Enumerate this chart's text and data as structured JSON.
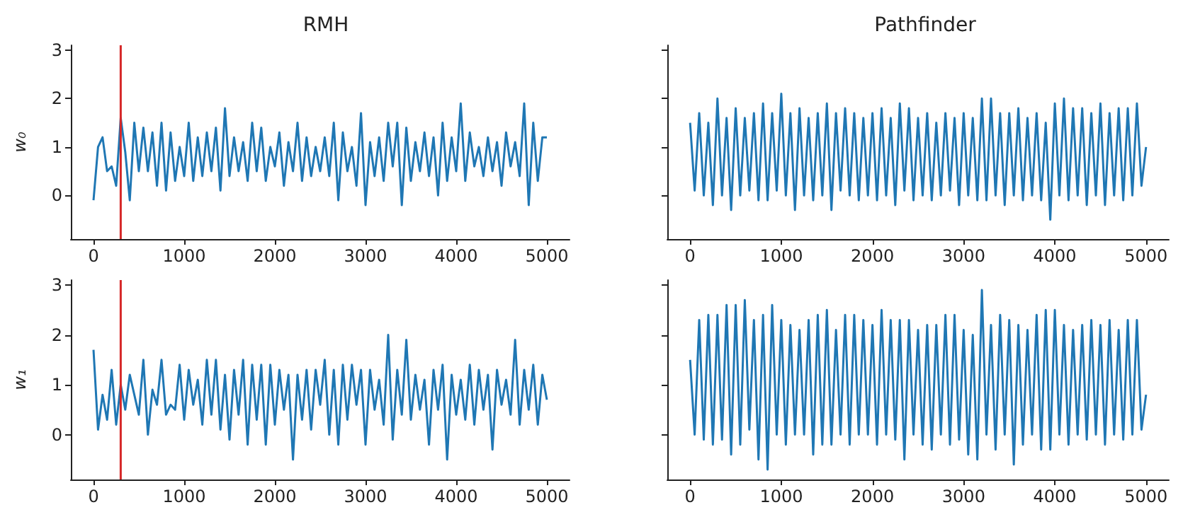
{
  "chart_data": [
    {
      "type": "line",
      "title": "RMH",
      "ylabel": "w₀",
      "xlim": [
        -250,
        5250
      ],
      "xticks": [
        0,
        1000,
        2000,
        3000,
        4000,
        5000
      ],
      "ylim": [
        -0.9,
        3.1
      ],
      "yticks": [
        0,
        1,
        2,
        3
      ],
      "ref_lines": [
        {
          "axis": "x",
          "value": 300,
          "color": "#d62728"
        }
      ],
      "x": [
        0,
        50,
        100,
        150,
        200,
        250,
        300,
        350,
        400,
        450,
        500,
        550,
        600,
        650,
        700,
        750,
        800,
        850,
        900,
        950,
        1000,
        1050,
        1100,
        1150,
        1200,
        1250,
        1300,
        1350,
        1400,
        1450,
        1500,
        1550,
        1600,
        1650,
        1700,
        1750,
        1800,
        1850,
        1900,
        1950,
        2000,
        2050,
        2100,
        2150,
        2200,
        2250,
        2300,
        2350,
        2400,
        2450,
        2500,
        2550,
        2600,
        2650,
        2700,
        2750,
        2800,
        2850,
        2900,
        2950,
        3000,
        3050,
        3100,
        3150,
        3200,
        3250,
        3300,
        3350,
        3400,
        3450,
        3500,
        3550,
        3600,
        3650,
        3700,
        3750,
        3800,
        3850,
        3900,
        3950,
        4000,
        4050,
        4100,
        4150,
        4200,
        4250,
        4300,
        4350,
        4400,
        4450,
        4500,
        4550,
        4600,
        4650,
        4700,
        4750,
        4800,
        4850,
        4900,
        4950,
        5000
      ],
      "series": [
        {
          "color": "#1f77b4",
          "values": [
            -0.1,
            1.0,
            1.2,
            0.5,
            0.6,
            0.2,
            1.6,
            0.9,
            -0.1,
            1.5,
            0.5,
            1.4,
            0.5,
            1.3,
            0.2,
            1.5,
            0.1,
            1.3,
            0.3,
            1.0,
            0.4,
            1.5,
            0.3,
            1.2,
            0.4,
            1.3,
            0.5,
            1.4,
            0.1,
            1.8,
            0.4,
            1.2,
            0.5,
            1.1,
            0.3,
            1.5,
            0.5,
            1.4,
            0.3,
            1.0,
            0.6,
            1.3,
            0.2,
            1.1,
            0.5,
            1.5,
            0.3,
            1.2,
            0.4,
            1.0,
            0.5,
            1.2,
            0.4,
            1.5,
            -0.1,
            1.3,
            0.5,
            1.0,
            0.2,
            1.7,
            -0.2,
            1.1,
            0.4,
            1.2,
            0.3,
            1.5,
            0.6,
            1.5,
            -0.2,
            1.4,
            0.3,
            1.1,
            0.5,
            1.3,
            0.4,
            1.2,
            0.0,
            1.5,
            0.3,
            1.2,
            0.5,
            1.9,
            0.3,
            1.3,
            0.6,
            1.0,
            0.4,
            1.2,
            0.5,
            1.1,
            0.2,
            1.3,
            0.6,
            1.1,
            0.4,
            1.9,
            -0.2,
            1.5,
            0.3,
            1.2,
            1.2
          ]
        }
      ]
    },
    {
      "type": "line",
      "title": "Pathfinder",
      "tick_labels": "x",
      "xlim": [
        -250,
        5250
      ],
      "xticks": [
        0,
        1000,
        2000,
        3000,
        4000,
        5000
      ],
      "ylim": [
        -0.9,
        3.1
      ],
      "yticks": [
        0,
        1,
        2,
        3
      ],
      "x": [
        0,
        50,
        100,
        150,
        200,
        250,
        300,
        350,
        400,
        450,
        500,
        550,
        600,
        650,
        700,
        750,
        800,
        850,
        900,
        950,
        1000,
        1050,
        1100,
        1150,
        1200,
        1250,
        1300,
        1350,
        1400,
        1450,
        1500,
        1550,
        1600,
        1650,
        1700,
        1750,
        1800,
        1850,
        1900,
        1950,
        2000,
        2050,
        2100,
        2150,
        2200,
        2250,
        2300,
        2350,
        2400,
        2450,
        2500,
        2550,
        2600,
        2650,
        2700,
        2750,
        2800,
        2850,
        2900,
        2950,
        3000,
        3050,
        3100,
        3150,
        3200,
        3250,
        3300,
        3350,
        3400,
        3450,
        3500,
        3550,
        3600,
        3650,
        3700,
        3750,
        3800,
        3850,
        3900,
        3950,
        4000,
        4050,
        4100,
        4150,
        4200,
        4250,
        4300,
        4350,
        4400,
        4450,
        4500,
        4550,
        4600,
        4650,
        4700,
        4750,
        4800,
        4850,
        4900,
        4950,
        5000
      ],
      "series": [
        {
          "color": "#1f77b4",
          "values": [
            1.5,
            0.1,
            1.7,
            0.0,
            1.5,
            -0.2,
            2.0,
            0.0,
            1.6,
            -0.3,
            1.8,
            0.0,
            1.6,
            0.1,
            1.7,
            -0.1,
            1.9,
            -0.1,
            1.7,
            0.1,
            2.1,
            0.0,
            1.7,
            -0.3,
            1.8,
            0.0,
            1.6,
            -0.1,
            1.7,
            0.0,
            1.9,
            -0.3,
            1.7,
            0.1,
            1.8,
            0.0,
            1.7,
            -0.1,
            1.6,
            0.0,
            1.7,
            -0.1,
            1.8,
            0.0,
            1.6,
            -0.2,
            1.9,
            0.1,
            1.8,
            -0.1,
            1.6,
            0.0,
            1.7,
            -0.1,
            1.5,
            0.0,
            1.7,
            0.1,
            1.6,
            -0.2,
            1.7,
            0.0,
            1.6,
            -0.1,
            2.0,
            -0.1,
            2.0,
            0.0,
            1.7,
            -0.2,
            1.7,
            0.0,
            1.8,
            -0.1,
            1.6,
            0.0,
            1.7,
            -0.1,
            1.5,
            -0.5,
            1.9,
            0.0,
            2.0,
            -0.1,
            1.8,
            0.0,
            1.8,
            -0.2,
            1.7,
            0.0,
            1.9,
            -0.2,
            1.7,
            0.0,
            1.8,
            -0.1,
            1.8,
            0.0,
            1.9,
            0.2,
            1.0
          ]
        }
      ]
    },
    {
      "type": "line",
      "ylabel": "w₁",
      "xlim": [
        -250,
        5250
      ],
      "xticks": [
        0,
        1000,
        2000,
        3000,
        4000,
        5000
      ],
      "ylim": [
        -0.9,
        3.1
      ],
      "yticks": [
        0,
        1,
        2,
        3
      ],
      "ref_lines": [
        {
          "axis": "x",
          "value": 300,
          "color": "#d62728"
        }
      ],
      "x": [
        0,
        50,
        100,
        150,
        200,
        250,
        300,
        350,
        400,
        450,
        500,
        550,
        600,
        650,
        700,
        750,
        800,
        850,
        900,
        950,
        1000,
        1050,
        1100,
        1150,
        1200,
        1250,
        1300,
        1350,
        1400,
        1450,
        1500,
        1550,
        1600,
        1650,
        1700,
        1750,
        1800,
        1850,
        1900,
        1950,
        2000,
        2050,
        2100,
        2150,
        2200,
        2250,
        2300,
        2350,
        2400,
        2450,
        2500,
        2550,
        2600,
        2650,
        2700,
        2750,
        2800,
        2850,
        2900,
        2950,
        3000,
        3050,
        3100,
        3150,
        3200,
        3250,
        3300,
        3350,
        3400,
        3450,
        3500,
        3550,
        3600,
        3650,
        3700,
        3750,
        3800,
        3850,
        3900,
        3950,
        4000,
        4050,
        4100,
        4150,
        4200,
        4250,
        4300,
        4350,
        4400,
        4450,
        4500,
        4550,
        4600,
        4650,
        4700,
        4750,
        4800,
        4850,
        4900,
        4950,
        5000
      ],
      "series": [
        {
          "color": "#1f77b4",
          "values": [
            1.7,
            0.1,
            0.8,
            0.3,
            1.3,
            0.2,
            1.0,
            0.5,
            1.2,
            0.8,
            0.4,
            1.5,
            0.0,
            0.9,
            0.6,
            1.5,
            0.4,
            0.6,
            0.5,
            1.4,
            0.3,
            1.3,
            0.6,
            1.1,
            0.2,
            1.5,
            0.4,
            1.5,
            0.1,
            1.2,
            -0.1,
            1.3,
            0.4,
            1.5,
            -0.2,
            1.4,
            0.3,
            1.4,
            -0.2,
            1.4,
            0.2,
            1.3,
            0.5,
            1.2,
            -0.5,
            1.2,
            0.3,
            1.3,
            0.1,
            1.3,
            0.6,
            1.5,
            0.0,
            1.3,
            -0.2,
            1.4,
            0.3,
            1.4,
            0.6,
            1.3,
            -0.2,
            1.3,
            0.5,
            1.1,
            0.2,
            2.0,
            -0.1,
            1.3,
            0.4,
            1.9,
            0.3,
            1.2,
            0.5,
            1.1,
            -0.2,
            1.3,
            0.5,
            1.4,
            -0.5,
            1.2,
            0.4,
            1.1,
            0.3,
            1.4,
            0.2,
            1.3,
            0.5,
            1.2,
            -0.3,
            1.3,
            0.6,
            1.1,
            0.4,
            1.9,
            0.2,
            1.3,
            0.5,
            1.4,
            0.2,
            1.2,
            0.7
          ]
        }
      ]
    },
    {
      "type": "line",
      "tick_labels": "x",
      "xlim": [
        -250,
        5250
      ],
      "xticks": [
        0,
        1000,
        2000,
        3000,
        4000,
        5000
      ],
      "ylim": [
        -0.9,
        3.1
      ],
      "yticks": [
        0,
        1,
        2,
        3
      ],
      "x": [
        0,
        50,
        100,
        150,
        200,
        250,
        300,
        350,
        400,
        450,
        500,
        550,
        600,
        650,
        700,
        750,
        800,
        850,
        900,
        950,
        1000,
        1050,
        1100,
        1150,
        1200,
        1250,
        1300,
        1350,
        1400,
        1450,
        1500,
        1550,
        1600,
        1650,
        1700,
        1750,
        1800,
        1850,
        1900,
        1950,
        2000,
        2050,
        2100,
        2150,
        2200,
        2250,
        2300,
        2350,
        2400,
        2450,
        2500,
        2550,
        2600,
        2650,
        2700,
        2750,
        2800,
        2850,
        2900,
        2950,
        3000,
        3050,
        3100,
        3150,
        3200,
        3250,
        3300,
        3350,
        3400,
        3450,
        3500,
        3550,
        3600,
        3650,
        3700,
        3750,
        3800,
        3850,
        3900,
        3950,
        4000,
        4050,
        4100,
        4150,
        4200,
        4250,
        4300,
        4350,
        4400,
        4450,
        4500,
        4550,
        4600,
        4650,
        4700,
        4750,
        4800,
        4850,
        4900,
        4950,
        5000
      ],
      "series": [
        {
          "color": "#1f77b4",
          "values": [
            1.5,
            0.0,
            2.3,
            -0.1,
            2.4,
            -0.2,
            2.4,
            -0.1,
            2.6,
            -0.4,
            2.6,
            -0.2,
            2.7,
            0.1,
            2.3,
            -0.5,
            2.4,
            -0.7,
            2.6,
            0.0,
            2.3,
            -0.2,
            2.2,
            0.0,
            2.1,
            0.0,
            2.3,
            -0.4,
            2.4,
            -0.2,
            2.5,
            -0.2,
            2.1,
            0.0,
            2.4,
            -0.2,
            2.4,
            0.0,
            2.3,
            0.0,
            2.2,
            -0.2,
            2.5,
            0.0,
            2.3,
            -0.1,
            2.3,
            -0.5,
            2.3,
            0.0,
            2.1,
            -0.2,
            2.2,
            -0.3,
            2.2,
            0.0,
            2.4,
            -0.2,
            2.4,
            -0.1,
            2.1,
            -0.4,
            2.0,
            -0.5,
            2.9,
            0.0,
            2.2,
            -0.3,
            2.4,
            0.0,
            2.3,
            -0.6,
            2.2,
            -0.2,
            2.1,
            0.0,
            2.4,
            -0.3,
            2.5,
            -0.3,
            2.5,
            0.0,
            2.2,
            -0.2,
            2.1,
            0.0,
            2.2,
            -0.1,
            2.3,
            0.0,
            2.2,
            -0.2,
            2.3,
            0.0,
            2.1,
            -0.1,
            2.3,
            0.0,
            2.3,
            0.1,
            0.8
          ]
        }
      ]
    }
  ]
}
